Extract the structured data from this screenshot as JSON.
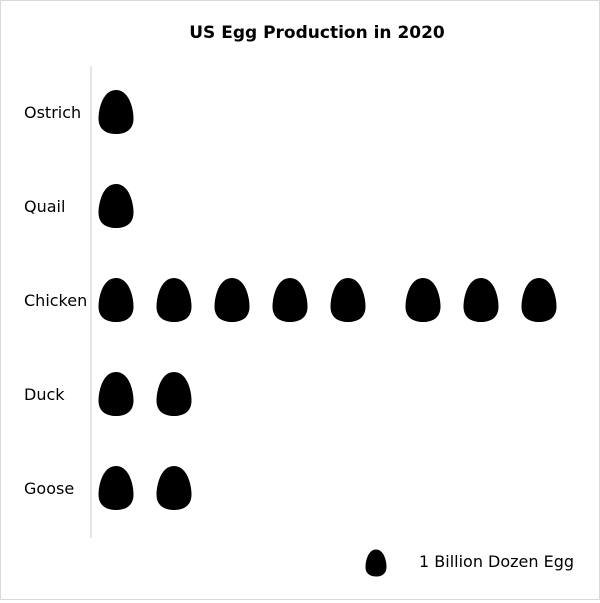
{
  "chart_data": {
    "type": "pictograph",
    "title": "US Egg Production in 2020",
    "unit_label": "1 Billion Dozen Egg",
    "icon": "egg-icon",
    "icon_color": "#000000",
    "categories": [
      "Ostrich",
      "Quail",
      "Chicken",
      "Duck",
      "Goose"
    ],
    "values": [
      1,
      1,
      8,
      2,
      2
    ],
    "axis_color": "#cccccc"
  }
}
